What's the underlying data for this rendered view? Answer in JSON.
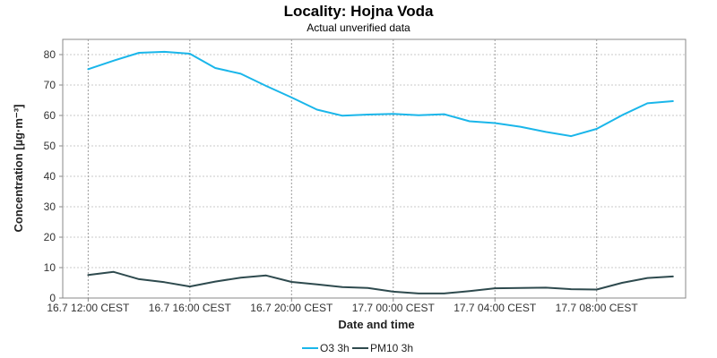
{
  "chart_data": {
    "type": "line",
    "title": "Locality: Hojna Voda",
    "subtitle": "Actual unverified data",
    "xlabel": "Date and time",
    "ylabel": "Concentration [µg·m⁻³]",
    "ylim": [
      0,
      85
    ],
    "yticks": [
      0,
      10,
      20,
      30,
      40,
      50,
      60,
      70,
      80
    ],
    "x": [
      "16.7 12:00",
      "16.7 13:00",
      "16.7 14:00",
      "16.7 15:00",
      "16.7 16:00",
      "16.7 17:00",
      "16.7 18:00",
      "16.7 19:00",
      "16.7 20:00",
      "16.7 21:00",
      "16.7 22:00",
      "16.7 23:00",
      "17.7 00:00",
      "17.7 01:00",
      "17.7 02:00",
      "17.7 03:00",
      "17.7 04:00",
      "17.7 05:00",
      "17.7 06:00",
      "17.7 07:00",
      "17.7 08:00",
      "17.7 09:00",
      "17.7 10:00",
      "17.7 11:00"
    ],
    "xticks": [
      {
        "at": 0,
        "label": "16.7 12:00 CEST"
      },
      {
        "at": 4,
        "label": "16.7 16:00 CEST"
      },
      {
        "at": 8,
        "label": "16.7 20:00 CEST"
      },
      {
        "at": 12,
        "label": "17.7 00:00 CEST"
      },
      {
        "at": 16,
        "label": "17.7 04:00 CEST"
      },
      {
        "at": 20,
        "label": "17.7 08:00 CEST"
      }
    ],
    "xlim": [
      -1,
      23.5
    ],
    "grid": true,
    "legend_position": "bottom-center",
    "series": [
      {
        "name": "O3 3h",
        "color": "#1ab6ea",
        "values": [
          75.2,
          78.0,
          80.6,
          80.9,
          80.3,
          75.6,
          73.7,
          69.7,
          65.9,
          61.9,
          59.9,
          60.3,
          60.5,
          60.1,
          60.4,
          58.1,
          57.5,
          56.3,
          54.6,
          53.2,
          55.6,
          60.1,
          64.0,
          64.7
        ]
      },
      {
        "name": "PM10 3h",
        "color": "#2e4a4e",
        "values": [
          7.6,
          8.6,
          6.2,
          5.2,
          3.8,
          5.4,
          6.7,
          7.4,
          5.3,
          4.5,
          3.6,
          3.3,
          2.1,
          1.5,
          1.5,
          2.3,
          3.2,
          3.3,
          3.4,
          2.9,
          2.8,
          5.0,
          6.6,
          7.1
        ]
      }
    ]
  }
}
